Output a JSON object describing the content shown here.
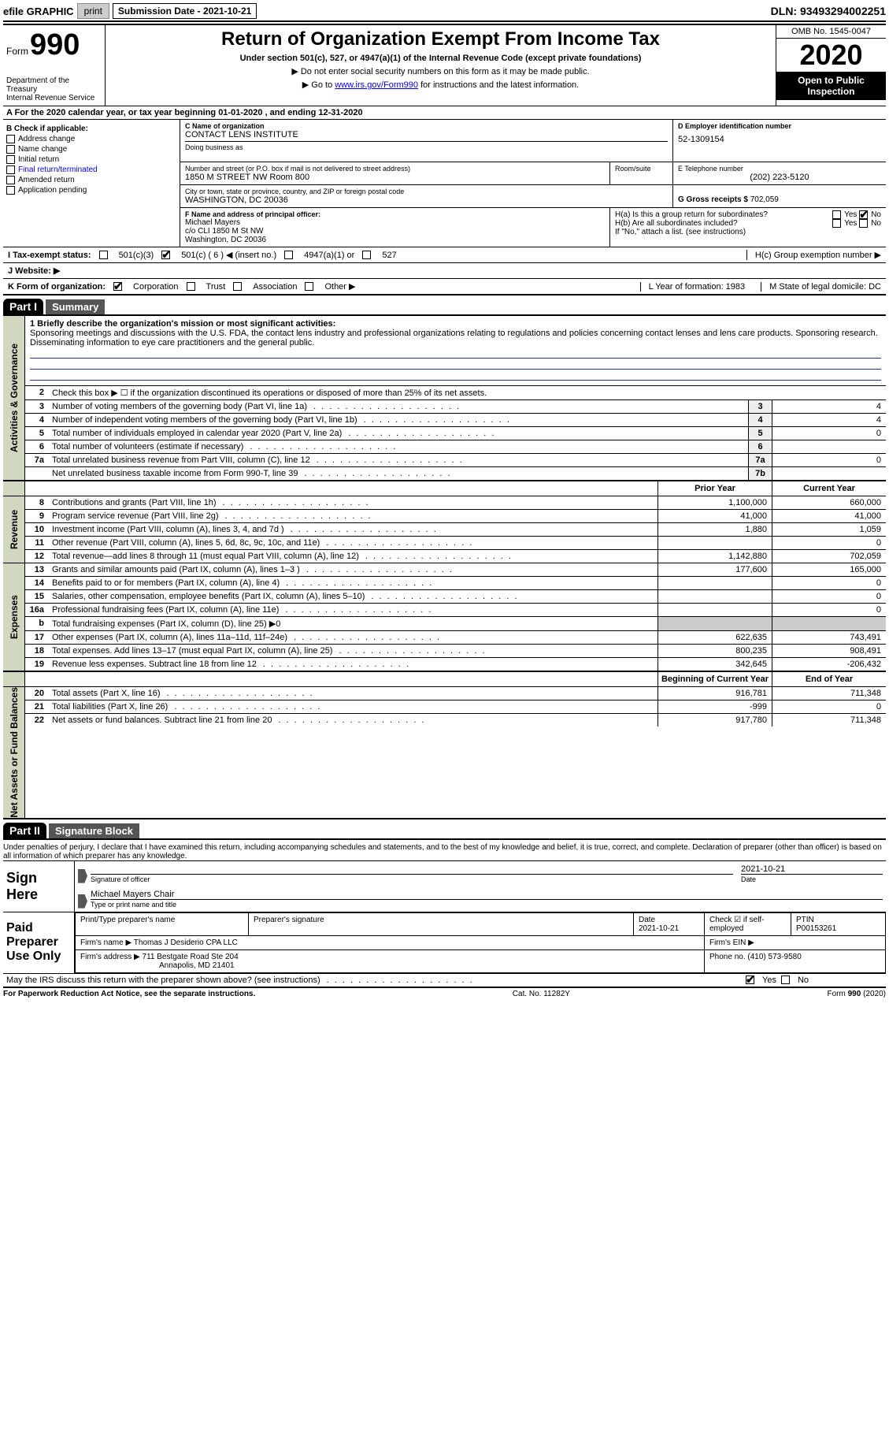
{
  "topbar": {
    "efile": "efile GRAPHIC",
    "print": "print",
    "sub_date_label": "Submission Date - 2021-10-21",
    "dln": "DLN: 93493294002251"
  },
  "header": {
    "form_word": "Form",
    "form_num": "990",
    "dept1": "Department of the Treasury",
    "dept2": "Internal Revenue Service",
    "title": "Return of Organization Exempt From Income Tax",
    "sub1": "Under section 501(c), 527, or 4947(a)(1) of the Internal Revenue Code (except private foundations)",
    "sub2": "▶ Do not enter social security numbers on this form as it may be made public.",
    "sub3_pre": "▶ Go to ",
    "sub3_link": "www.irs.gov/Form990",
    "sub3_post": " for instructions and the latest information.",
    "omb": "OMB No. 1545-0047",
    "year": "2020",
    "open": "Open to Public Inspection"
  },
  "sectionA": "A For the 2020 calendar year, or tax year beginning 01-01-2020   , and ending 12-31-2020",
  "boxB": {
    "title": "B Check if applicable:",
    "items": [
      "Address change",
      "Name change",
      "Initial return",
      "Final return/terminated",
      "Amended return",
      "Application pending"
    ]
  },
  "boxC": {
    "lbl_name": "C Name of organization",
    "name": "CONTACT LENS INSTITUTE",
    "dba_lbl": "Doing business as",
    "addr_lbl": "Number and street (or P.O. box if mail is not delivered to street address)",
    "room_lbl": "Room/suite",
    "addr": "1850 M STREET NW Room 800",
    "city_lbl": "City or town, state or province, country, and ZIP or foreign postal code",
    "city": "WASHINGTON, DC  20036"
  },
  "boxD": {
    "lbl": "D Employer identification number",
    "val": "52-1309154"
  },
  "boxE": {
    "lbl": "E Telephone number",
    "val": "(202) 223-5120"
  },
  "boxG": {
    "lbl": "G Gross receipts $",
    "val": "702,059"
  },
  "boxF": {
    "lbl": "F Name and address of principal officer:",
    "name": "Michael Mayers",
    "addr1": "c/o CLI 1850 M St NW",
    "addr2": "Washington, DC  20036"
  },
  "boxH": {
    "ha": "H(a)  Is this a group return for subordinates?",
    "hb": "H(b)  Are all subordinates included?",
    "hb_note": "If \"No,\" attach a list. (see instructions)",
    "hc": "H(c)  Group exemption number ▶",
    "yes": "Yes",
    "no": "No"
  },
  "rowI": {
    "lbl": "I   Tax-exempt status:",
    "o1": "501(c)(3)",
    "o2": "501(c) ( 6 ) ◀ (insert no.)",
    "o3": "4947(a)(1) or",
    "o4": "527"
  },
  "rowJ": "J   Website: ▶",
  "rowK": {
    "lbl": "K Form of organization:",
    "o1": "Corporation",
    "o2": "Trust",
    "o3": "Association",
    "o4": "Other ▶"
  },
  "rowL": "L Year of formation: 1983",
  "rowM": "M State of legal domicile: DC",
  "part1": {
    "hdr": "Part I",
    "title": "Summary"
  },
  "vtabs": {
    "gov": "Activities & Governance",
    "rev": "Revenue",
    "exp": "Expenses",
    "net": "Net Assets or Fund Balances"
  },
  "summary": {
    "l1_lbl": "1  Briefly describe the organization's mission or most significant activities:",
    "l1_txt": "Sponsoring meetings and discussions with the U.S. FDA, the contact lens industry and professional organizations relating to regulations and policies concerning contact lenses and lens care products. Sponsoring research. Disseminating information to eye care practitioners and the general public.",
    "l2": "Check this box ▶ ☐ if the organization discontinued its operations or disposed of more than 25% of its net assets.",
    "lines_small": [
      {
        "n": "3",
        "t": "Number of voting members of the governing body (Part VI, line 1a)",
        "b": "3",
        "v": "4"
      },
      {
        "n": "4",
        "t": "Number of independent voting members of the governing body (Part VI, line 1b)",
        "b": "4",
        "v": "4"
      },
      {
        "n": "5",
        "t": "Total number of individuals employed in calendar year 2020 (Part V, line 2a)",
        "b": "5",
        "v": "0"
      },
      {
        "n": "6",
        "t": "Total number of volunteers (estimate if necessary)",
        "b": "6",
        "v": ""
      },
      {
        "n": "7a",
        "t": "Total unrelated business revenue from Part VIII, column (C), line 12",
        "b": "7a",
        "v": "0"
      },
      {
        "n": "",
        "t": "Net unrelated business taxable income from Form 990-T, line 39",
        "b": "7b",
        "v": ""
      }
    ],
    "col_hdr_prior": "Prior Year",
    "col_hdr_curr": "Current Year",
    "col_hdr_begin": "Beginning of Current Year",
    "col_hdr_end": "End of Year",
    "revenue": [
      {
        "n": "8",
        "t": "Contributions and grants (Part VIII, line 1h)",
        "p": "1,100,000",
        "c": "660,000"
      },
      {
        "n": "9",
        "t": "Program service revenue (Part VIII, line 2g)",
        "p": "41,000",
        "c": "41,000"
      },
      {
        "n": "10",
        "t": "Investment income (Part VIII, column (A), lines 3, 4, and 7d )",
        "p": "1,880",
        "c": "1,059"
      },
      {
        "n": "11",
        "t": "Other revenue (Part VIII, column (A), lines 5, 6d, 8c, 9c, 10c, and 11e)",
        "p": "",
        "c": "0"
      },
      {
        "n": "12",
        "t": "Total revenue—add lines 8 through 11 (must equal Part VIII, column (A), line 12)",
        "p": "1,142,880",
        "c": "702,059"
      }
    ],
    "expenses": [
      {
        "n": "13",
        "t": "Grants and similar amounts paid (Part IX, column (A), lines 1–3 )",
        "p": "177,600",
        "c": "165,000"
      },
      {
        "n": "14",
        "t": "Benefits paid to or for members (Part IX, column (A), line 4)",
        "p": "",
        "c": "0"
      },
      {
        "n": "15",
        "t": "Salaries, other compensation, employee benefits (Part IX, column (A), lines 5–10)",
        "p": "",
        "c": "0"
      },
      {
        "n": "16a",
        "t": "Professional fundraising fees (Part IX, column (A), line 11e)",
        "p": "",
        "c": "0"
      },
      {
        "n": "b",
        "t": "Total fundraising expenses (Part IX, column (D), line 25) ▶0",
        "p": "—",
        "c": "—"
      },
      {
        "n": "17",
        "t": "Other expenses (Part IX, column (A), lines 11a–11d, 11f–24e)",
        "p": "622,635",
        "c": "743,491"
      },
      {
        "n": "18",
        "t": "Total expenses. Add lines 13–17 (must equal Part IX, column (A), line 25)",
        "p": "800,235",
        "c": "908,491"
      },
      {
        "n": "19",
        "t": "Revenue less expenses. Subtract line 18 from line 12",
        "p": "342,645",
        "c": "-206,432"
      }
    ],
    "net": [
      {
        "n": "20",
        "t": "Total assets (Part X, line 16)",
        "p": "916,781",
        "c": "711,348"
      },
      {
        "n": "21",
        "t": "Total liabilities (Part X, line 26)",
        "p": "-999",
        "c": "0"
      },
      {
        "n": "22",
        "t": "Net assets or fund balances. Subtract line 21 from line 20",
        "p": "917,780",
        "c": "711,348"
      }
    ]
  },
  "part2": {
    "hdr": "Part II",
    "title": "Signature Block",
    "decl": "Under penalties of perjury, I declare that I have examined this return, including accompanying schedules and statements, and to the best of my knowledge and belief, it is true, correct, and complete. Declaration of preparer (other than officer) is based on all information of which preparer has any knowledge."
  },
  "sign": {
    "here": "Sign Here",
    "sig_lbl": "Signature of officer",
    "date_lbl": "Date",
    "date_val": "2021-10-21",
    "name": "Michael Mayers  Chair",
    "name_lbl": "Type or print name and title"
  },
  "paid": {
    "title": "Paid Preparer Use Only",
    "h1": "Print/Type preparer's name",
    "h2": "Preparer's signature",
    "h3": "Date",
    "h3v": "2021-10-21",
    "h4": "Check ☑ if self-employed",
    "h5": "PTIN",
    "h5v": "P00153261",
    "firm_lbl": "Firm's name    ▶",
    "firm": "Thomas J Desiderio CPA LLC",
    "ein_lbl": "Firm's EIN ▶",
    "addr_lbl": "Firm's address ▶",
    "addr1": "711 Bestgate Road Ste 204",
    "addr2": "Annapolis, MD  21401",
    "phone_lbl": "Phone no.",
    "phone": "(410) 573-9580"
  },
  "footer": {
    "discuss": "May the IRS discuss this return with the preparer shown above? (see instructions)",
    "yes": "Yes",
    "no": "No",
    "paperwork": "For Paperwork Reduction Act Notice, see the separate instructions.",
    "cat": "Cat. No. 11282Y",
    "form": "Form 990 (2020)"
  }
}
